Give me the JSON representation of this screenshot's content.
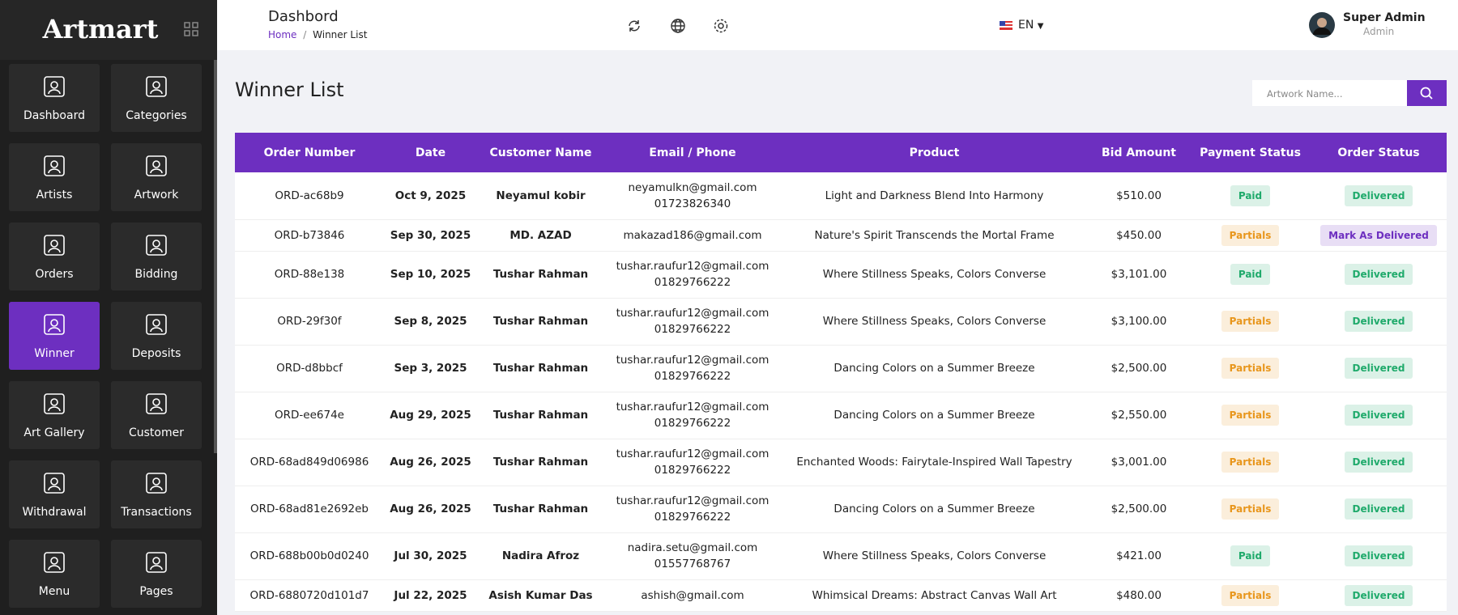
{
  "sidebar": {
    "brand": "Artmart",
    "items": [
      {
        "label": "Dashboard"
      },
      {
        "label": "Categories"
      },
      {
        "label": "Artists"
      },
      {
        "label": "Artwork"
      },
      {
        "label": "Orders"
      },
      {
        "label": "Bidding"
      },
      {
        "label": "Winner",
        "active": true
      },
      {
        "label": "Deposits"
      },
      {
        "label": "Art Gallery"
      },
      {
        "label": "Customer"
      },
      {
        "label": "Withdrawal"
      },
      {
        "label": "Transactions"
      },
      {
        "label": "Menu"
      },
      {
        "label": "Pages"
      }
    ]
  },
  "header": {
    "title": "Dashbord",
    "breadcrumb": {
      "home": "Home",
      "separator": "/",
      "current": "Winner List"
    },
    "language": "EN",
    "user": {
      "name": "Super Admin",
      "role": "Admin"
    }
  },
  "page": {
    "title": "Winner List"
  },
  "search": {
    "placeholder": "Artwork Name..."
  },
  "table": {
    "columns": [
      "Order Number",
      "Date",
      "Customer Name",
      "Email / Phone",
      "Product",
      "Bid Amount",
      "Payment Status",
      "Order Status"
    ],
    "rows": [
      {
        "order": "ORD-ac68b9",
        "date": "Oct 9, 2025",
        "customer": "Neyamul kobir",
        "email": "neyamulkn@gmail.com",
        "phone": "01723826340",
        "product": "Light and Darkness Blend Into Harmony",
        "amount": "$510.00",
        "payment": {
          "text": "Paid",
          "color": "#1faa6b"
        },
        "status": {
          "text": "Delivered",
          "color": "#1faa6b"
        }
      },
      {
        "order": "ORD-b73846",
        "date": "Sep 30, 2025",
        "customer": "MD. AZAD",
        "email": "makazad186@gmail.com",
        "product": "Nature's Spirit Transcends the Mortal Frame",
        "amount": "$450.00",
        "payment": {
          "text": "Partials",
          "color": "#e8961c"
        },
        "status": {
          "text": "Mark As Delivered",
          "color": "#6d2fc0",
          "button": true
        }
      },
      {
        "order": "ORD-88e138",
        "date": "Sep 10, 2025",
        "customer": "Tushar Rahman",
        "email": "tushar.raufur12@gmail.com",
        "phone": "01829766222",
        "product": "Where Stillness Speaks, Colors Converse",
        "amount": "$3,101.00",
        "payment": {
          "text": "Paid",
          "color": "#1faa6b"
        },
        "status": {
          "text": "Delivered",
          "color": "#1faa6b"
        }
      },
      {
        "order": "ORD-29f30f",
        "date": "Sep 8, 2025",
        "customer": "Tushar Rahman",
        "email": "tushar.raufur12@gmail.com",
        "phone": "01829766222",
        "product": "Where Stillness Speaks, Colors Converse",
        "amount": "$3,100.00",
        "payment": {
          "text": "Partials",
          "color": "#e8961c"
        },
        "status": {
          "text": "Delivered",
          "color": "#1faa6b"
        }
      },
      {
        "order": "ORD-d8bbcf",
        "date": "Sep 3, 2025",
        "customer": "Tushar Rahman",
        "email": "tushar.raufur12@gmail.com",
        "phone": "01829766222",
        "product": "Dancing Colors on a Summer Breeze",
        "amount": "$2,500.00",
        "payment": {
          "text": "Partials",
          "color": "#e8961c"
        },
        "status": {
          "text": "Delivered",
          "color": "#1faa6b"
        }
      },
      {
        "order": "ORD-ee674e",
        "date": "Aug 29, 2025",
        "customer": "Tushar Rahman",
        "email": "tushar.raufur12@gmail.com",
        "phone": "01829766222",
        "product": "Dancing Colors on a Summer Breeze",
        "amount": "$2,550.00",
        "payment": {
          "text": "Partials",
          "color": "#e8961c"
        },
        "status": {
          "text": "Delivered",
          "color": "#1faa6b"
        }
      },
      {
        "order": "ORD-68ad849d06986",
        "date": "Aug 26, 2025",
        "customer": "Tushar Rahman",
        "email": "tushar.raufur12@gmail.com",
        "phone": "01829766222",
        "product": "Enchanted Woods: Fairytale-Inspired Wall Tapestry",
        "amount": "$3,001.00",
        "payment": {
          "text": "Partials",
          "color": "#e8961c"
        },
        "status": {
          "text": "Delivered",
          "color": "#1faa6b"
        }
      },
      {
        "order": "ORD-68ad81e2692eb",
        "date": "Aug 26, 2025",
        "customer": "Tushar Rahman",
        "email": "tushar.raufur12@gmail.com",
        "phone": "01829766222",
        "product": "Dancing Colors on a Summer Breeze",
        "amount": "$2,500.00",
        "payment": {
          "text": "Partials",
          "color": "#e8961c"
        },
        "status": {
          "text": "Delivered",
          "color": "#1faa6b"
        }
      },
      {
        "order": "ORD-688b00b0d0240",
        "date": "Jul 30, 2025",
        "customer": "Nadira Afroz",
        "email": "nadira.setu@gmail.com",
        "phone": "01557768767",
        "product": "Where Stillness Speaks, Colors Converse",
        "amount": "$421.00",
        "payment": {
          "text": "Paid",
          "color": "#1faa6b"
        },
        "status": {
          "text": "Delivered",
          "color": "#1faa6b"
        }
      },
      {
        "order": "ORD-6880720d101d7",
        "date": "Jul 22, 2025",
        "customer": "Asish Kumar Das",
        "email": "ashish@gmail.com",
        "product": "Whimsical Dreams: Abstract Canvas Wall Art",
        "amount": "$480.00",
        "payment": {
          "text": "Partials",
          "color": "#e8961c"
        },
        "status": {
          "text": "Delivered",
          "color": "#1faa6b"
        }
      }
    ]
  }
}
